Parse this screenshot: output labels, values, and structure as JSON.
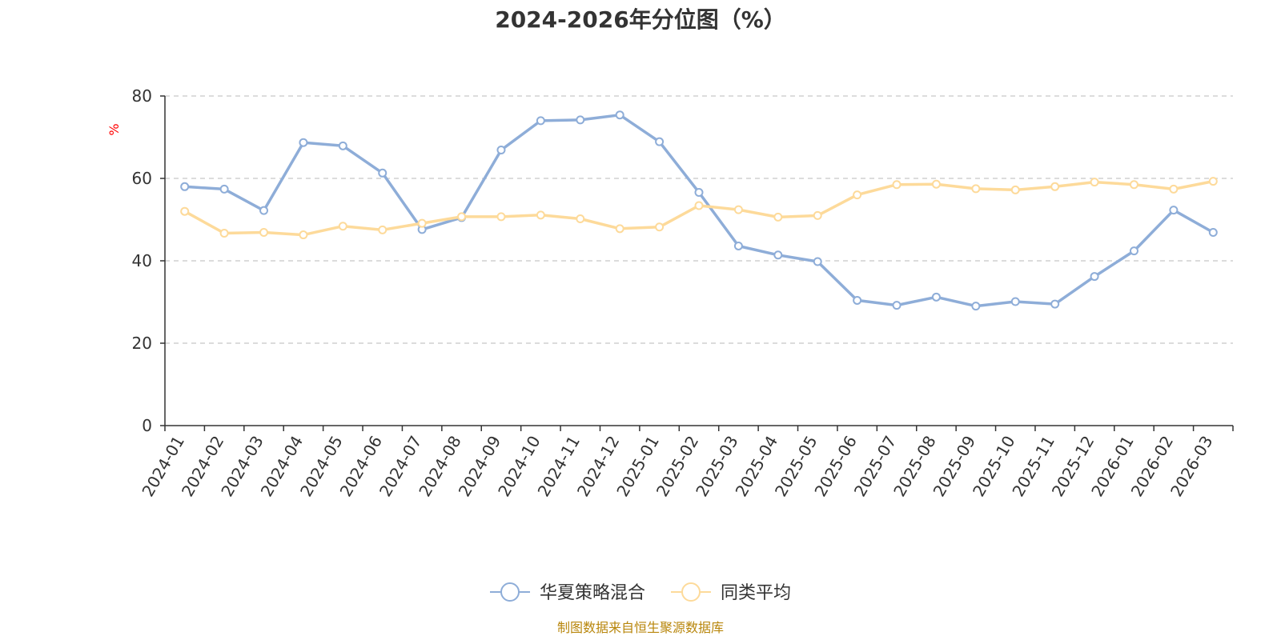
{
  "colors": {
    "series1": "#8eadd8",
    "series2": "#fdda9a",
    "grid": "#c8c8c8",
    "axis": "#333333",
    "source": "#b8860b",
    "unit": "#ff0000"
  },
  "chart_data": {
    "type": "line",
    "title": "2024-2026年分位图（%）",
    "ylabel": "%",
    "ylim": [
      0,
      80
    ],
    "yticks": [
      0,
      20,
      40,
      60,
      80
    ],
    "grid": true,
    "legend_position": "bottom-center",
    "categories": [
      "2024-01",
      "2024-02",
      "2024-03",
      "2024-04",
      "2024-05",
      "2024-06",
      "2024-07",
      "2024-08",
      "2024-09",
      "2024-10",
      "2024-11",
      "2024-12",
      "2025-01",
      "2025-02",
      "2025-03",
      "2025-04",
      "2025-05",
      "2025-06",
      "2025-07",
      "2025-08",
      "2025-09",
      "2025-10",
      "2025-11",
      "2025-12",
      "2026-01",
      "2026-02",
      "2026-03"
    ],
    "series": [
      {
        "name": "华夏策略混合",
        "color": "#8eadd8",
        "values": [
          58.0,
          57.4,
          52.2,
          68.7,
          67.9,
          61.3,
          47.6,
          50.5,
          66.9,
          74.0,
          74.2,
          75.4,
          68.9,
          56.6,
          43.6,
          41.4,
          39.8,
          30.4,
          29.2,
          31.2,
          29.0,
          30.1,
          29.5,
          36.2,
          42.4,
          52.3,
          46.9
        ]
      },
      {
        "name": "同类平均",
        "color": "#fdda9a",
        "values": [
          52.0,
          46.7,
          46.9,
          46.3,
          48.4,
          47.5,
          49.1,
          50.7,
          50.7,
          51.1,
          50.2,
          47.8,
          48.2,
          53.4,
          52.4,
          50.6,
          51.0,
          56.0,
          58.5,
          58.6,
          57.5,
          57.2,
          58.0,
          59.1,
          58.5,
          57.4,
          59.3
        ]
      }
    ]
  },
  "source": "制图数据来自恒生聚源数据库"
}
